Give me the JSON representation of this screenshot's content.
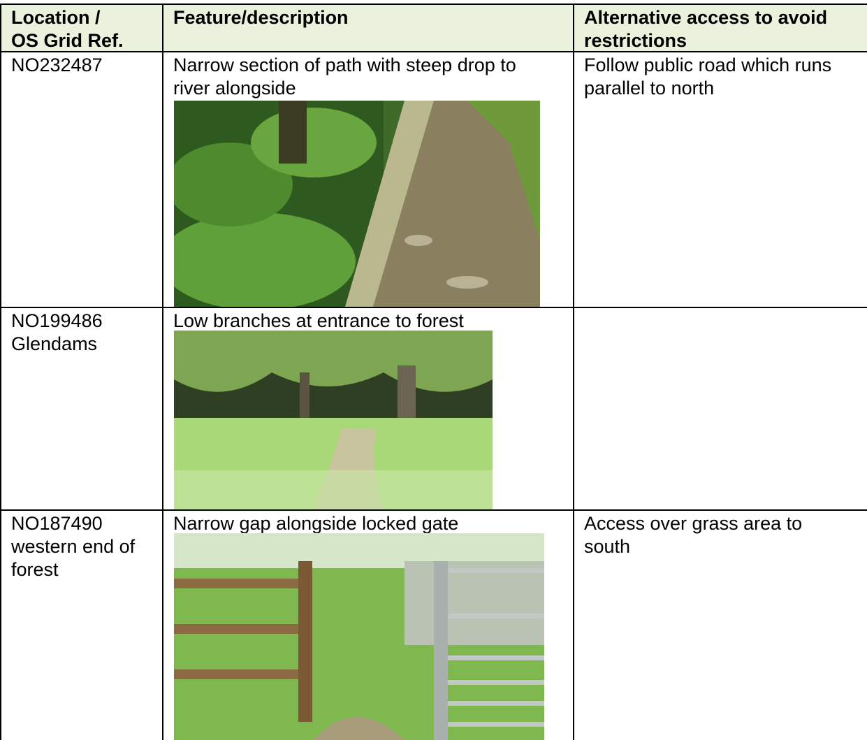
{
  "table": {
    "header": [
      [
        "Location /",
        "OS Grid Ref."
      ],
      [
        "Feature/description"
      ],
      [
        "Alternative access to avoid",
        "restrictions"
      ]
    ],
    "rows": [
      [
        [
          "NO232487"
        ],
        [
          "Narrow section of path with steep drop to",
          "river alongside"
        ],
        [
          "Follow public road which runs",
          "parallel to north"
        ]
      ],
      [
        [
          "NO199486",
          "Glendams"
        ],
        [
          "Low branches at entrance to forest"
        ],
        []
      ],
      [
        [
          "NO187490",
          "western end of",
          "forest"
        ],
        [
          "Narrow gap alongside locked gate"
        ],
        [
          "Access over grass area to",
          "south"
        ]
      ]
    ]
  }
}
